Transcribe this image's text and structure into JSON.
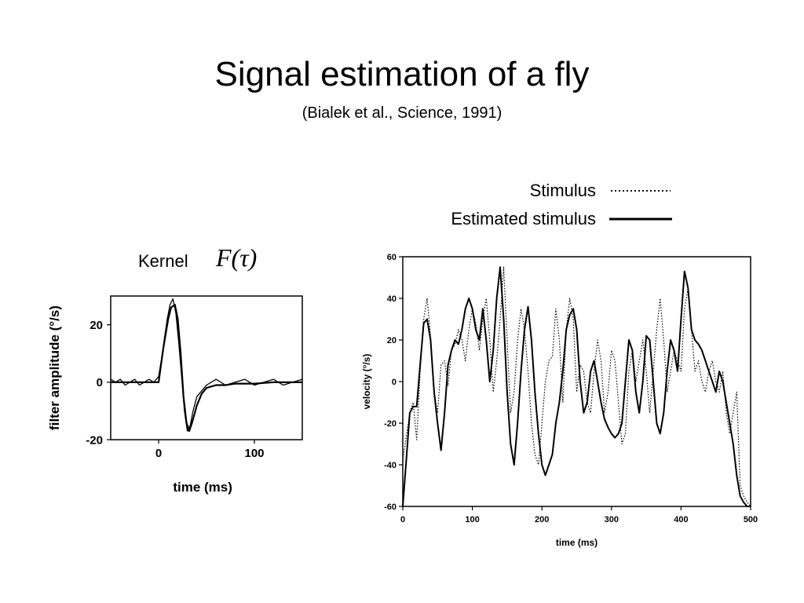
{
  "slide": {
    "title": "Signal estimation of a fly",
    "subtitle": "(Bialek et al., Science, 1991)"
  },
  "legend": {
    "stimulus_label": "Stimulus",
    "estimated_label": "Estimated stimulus"
  },
  "kernel": {
    "label": "Kernel",
    "formula": "F(τ)"
  },
  "chart_data": [
    {
      "type": "line",
      "xlabel": "time (ms)",
      "ylabel": "filter amplitude (°/s)",
      "xlim": [
        -50,
        150
      ],
      "ylim": [
        -20,
        30
      ],
      "xticks": [
        "0",
        "100"
      ],
      "yticks": [
        "20",
        "0",
        "-20"
      ],
      "grid": false,
      "series": [
        {
          "style": "solid-thick",
          "x": [
            -50,
            -40,
            -30,
            -20,
            -10,
            0,
            5,
            10,
            13,
            17,
            20,
            23,
            26,
            29,
            32,
            35,
            40,
            45,
            50,
            60,
            70,
            80,
            100,
            120,
            150
          ],
          "y": [
            0,
            0,
            0,
            0,
            0,
            0,
            12,
            22,
            26,
            27,
            22,
            10,
            -5,
            -14,
            -17,
            -14,
            -8,
            -4,
            -2,
            -1,
            -1,
            -0.5,
            -0.5,
            0,
            0
          ]
        },
        {
          "style": "noisy-thin",
          "x": [
            -50,
            -45,
            -40,
            -35,
            -30,
            -25,
            -20,
            -15,
            -10,
            -5,
            0,
            3,
            6,
            9,
            12,
            15,
            18,
            21,
            24,
            27,
            30,
            33,
            36,
            40,
            45,
            50,
            55,
            60,
            70,
            80,
            90,
            100,
            110,
            120,
            130,
            140,
            150
          ],
          "y": [
            1,
            0,
            1,
            -1,
            0,
            1,
            -1,
            0,
            1,
            0,
            2,
            8,
            15,
            22,
            27,
            29,
            24,
            14,
            2,
            -10,
            -17,
            -15,
            -10,
            -5,
            -3,
            -1,
            0,
            1,
            -1,
            0,
            1,
            -1,
            0,
            1,
            -1,
            0,
            1
          ]
        }
      ]
    },
    {
      "type": "line",
      "xlabel": "time (ms)",
      "ylabel": "velocity (°/s)",
      "xlim": [
        0,
        500
      ],
      "ylim": [
        -60,
        60
      ],
      "xticks": [
        "0",
        "100",
        "200",
        "300",
        "400",
        "500"
      ],
      "yticks": [
        "60",
        "40",
        "20",
        "0",
        "-20",
        "-40",
        "-60"
      ],
      "grid": false,
      "series": [
        {
          "name": "Stimulus",
          "style": "dotted",
          "x": [
            0,
            10,
            15,
            20,
            25,
            30,
            35,
            40,
            45,
            50,
            55,
            60,
            65,
            70,
            75,
            80,
            85,
            90,
            95,
            100,
            105,
            110,
            115,
            120,
            125,
            130,
            135,
            140,
            145,
            150,
            155,
            160,
            165,
            170,
            175,
            180,
            185,
            190,
            195,
            200,
            205,
            210,
            215,
            220,
            225,
            230,
            235,
            240,
            245,
            250,
            255,
            260,
            265,
            270,
            275,
            280,
            285,
            290,
            295,
            300,
            305,
            310,
            315,
            320,
            325,
            330,
            335,
            340,
            345,
            350,
            355,
            360,
            365,
            370,
            375,
            380,
            385,
            390,
            395,
            400,
            405,
            410,
            415,
            420,
            425,
            430,
            435,
            440,
            445,
            450,
            455,
            460,
            465,
            470,
            475,
            480,
            485,
            490,
            495,
            500
          ],
          "y": [
            -38,
            -15,
            -10,
            -28,
            5,
            30,
            40,
            22,
            -5,
            -15,
            8,
            10,
            -2,
            15,
            18,
            25,
            20,
            10,
            25,
            35,
            28,
            15,
            30,
            40,
            20,
            -5,
            10,
            30,
            55,
            20,
            -15,
            -5,
            20,
            35,
            25,
            5,
            -20,
            -35,
            -40,
            -20,
            0,
            10,
            12,
            35,
            20,
            -10,
            25,
            40,
            30,
            -5,
            8,
            5,
            -10,
            -15,
            5,
            20,
            10,
            -15,
            -5,
            15,
            10,
            -10,
            -30,
            -25,
            5,
            15,
            0,
            10,
            20,
            5,
            -15,
            5,
            25,
            40,
            20,
            -5,
            5,
            15,
            10,
            5,
            35,
            45,
            25,
            5,
            10,
            0,
            -5,
            5,
            10,
            0,
            -5,
            5,
            -15,
            -25,
            -15,
            -5,
            -50,
            -55,
            -58,
            -60
          ]
        },
        {
          "name": "Estimated stimulus",
          "style": "solid",
          "x": [
            0,
            5,
            10,
            15,
            20,
            25,
            30,
            35,
            40,
            45,
            50,
            55,
            60,
            65,
            70,
            75,
            80,
            85,
            90,
            95,
            100,
            105,
            110,
            115,
            120,
            125,
            130,
            135,
            140,
            145,
            150,
            155,
            160,
            165,
            170,
            175,
            180,
            185,
            190,
            195,
            200,
            205,
            210,
            215,
            220,
            225,
            230,
            235,
            240,
            245,
            250,
            255,
            260,
            265,
            270,
            275,
            280,
            285,
            290,
            295,
            300,
            305,
            310,
            315,
            320,
            325,
            330,
            335,
            340,
            345,
            350,
            355,
            360,
            365,
            370,
            375,
            380,
            385,
            390,
            395,
            400,
            405,
            410,
            415,
            420,
            425,
            430,
            435,
            440,
            445,
            450,
            455,
            460,
            465,
            470,
            475,
            480,
            485,
            490,
            495,
            500
          ],
          "y": [
            -60,
            -38,
            -15,
            -12,
            -12,
            8,
            28,
            30,
            20,
            -5,
            -20,
            -33,
            -15,
            8,
            15,
            20,
            18,
            25,
            35,
            40,
            35,
            25,
            20,
            35,
            20,
            0,
            15,
            40,
            55,
            30,
            -5,
            -30,
            -40,
            -20,
            5,
            25,
            36,
            20,
            -5,
            -25,
            -40,
            -45,
            -40,
            -35,
            -20,
            -10,
            5,
            25,
            32,
            35,
            25,
            0,
            -15,
            -10,
            5,
            10,
            0,
            -10,
            -18,
            -22,
            -25,
            -27,
            -25,
            -20,
            0,
            20,
            15,
            -5,
            -15,
            0,
            22,
            20,
            0,
            -20,
            -25,
            -15,
            5,
            20,
            15,
            5,
            30,
            53,
            45,
            25,
            20,
            18,
            15,
            10,
            5,
            0,
            -5,
            5,
            0,
            -10,
            -20,
            -30,
            -45,
            -55,
            -58,
            -60,
            -60
          ]
        }
      ]
    }
  ]
}
